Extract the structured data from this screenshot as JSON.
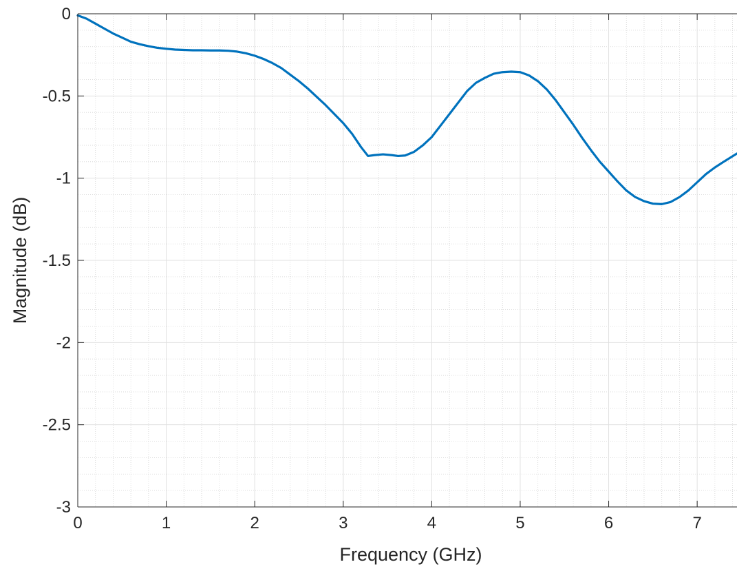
{
  "chart_data": {
    "type": "line",
    "title": "",
    "xlabel": "Frequency (GHz)",
    "ylabel": "Magnitude (dB)",
    "xlim": [
      0,
      7.45
    ],
    "ylim": [
      -3,
      0
    ],
    "x_ticks": [
      0,
      1,
      2,
      3,
      4,
      5,
      6,
      7
    ],
    "y_ticks": [
      0,
      -0.5,
      -1,
      -1.5,
      -2,
      -2.5,
      -3
    ],
    "x_tick_labels": [
      "0",
      "1",
      "2",
      "3",
      "4",
      "5",
      "6",
      "7"
    ],
    "y_tick_labels": [
      "0",
      "-0.5",
      "-1",
      "-1.5",
      "-2",
      "-2.5",
      "-3"
    ],
    "grid": true,
    "minor_grid": true,
    "line_color": "#0072BD",
    "series": [
      {
        "x": [
          0,
          0.1,
          0.2,
          0.3,
          0.4,
          0.5,
          0.6,
          0.7,
          0.8,
          0.9,
          1.0,
          1.1,
          1.2,
          1.3,
          1.4,
          1.5,
          1.6,
          1.7,
          1.8,
          1.9,
          2.0,
          2.1,
          2.2,
          2.3,
          2.4,
          2.5,
          2.6,
          2.7,
          2.8,
          2.9,
          3.0,
          3.1,
          3.2,
          3.28,
          3.35,
          3.45,
          3.55,
          3.62,
          3.7,
          3.8,
          3.9,
          4.0,
          4.1,
          4.2,
          4.3,
          4.4,
          4.5,
          4.6,
          4.7,
          4.8,
          4.9,
          5.0,
          5.1,
          5.2,
          5.3,
          5.4,
          5.5,
          5.6,
          5.7,
          5.8,
          5.9,
          6.0,
          6.1,
          6.2,
          6.3,
          6.4,
          6.5,
          6.6,
          6.7,
          6.8,
          6.9,
          7.0,
          7.1,
          7.2,
          7.3,
          7.45
        ],
        "y": [
          -0.01,
          -0.03,
          -0.06,
          -0.09,
          -0.12,
          -0.145,
          -0.17,
          -0.185,
          -0.197,
          -0.207,
          -0.213,
          -0.218,
          -0.22,
          -0.222,
          -0.222,
          -0.223,
          -0.223,
          -0.225,
          -0.23,
          -0.24,
          -0.255,
          -0.275,
          -0.3,
          -0.33,
          -0.37,
          -0.41,
          -0.455,
          -0.505,
          -0.555,
          -0.61,
          -0.665,
          -0.73,
          -0.81,
          -0.865,
          -0.86,
          -0.855,
          -0.86,
          -0.865,
          -0.862,
          -0.84,
          -0.8,
          -0.75,
          -0.68,
          -0.61,
          -0.54,
          -0.47,
          -0.42,
          -0.39,
          -0.365,
          -0.355,
          -0.352,
          -0.355,
          -0.375,
          -0.41,
          -0.46,
          -0.525,
          -0.6,
          -0.675,
          -0.755,
          -0.83,
          -0.9,
          -0.96,
          -1.02,
          -1.075,
          -1.115,
          -1.14,
          -1.155,
          -1.158,
          -1.145,
          -1.115,
          -1.075,
          -1.025,
          -0.975,
          -0.935,
          -0.9,
          -0.85
        ]
      }
    ]
  }
}
